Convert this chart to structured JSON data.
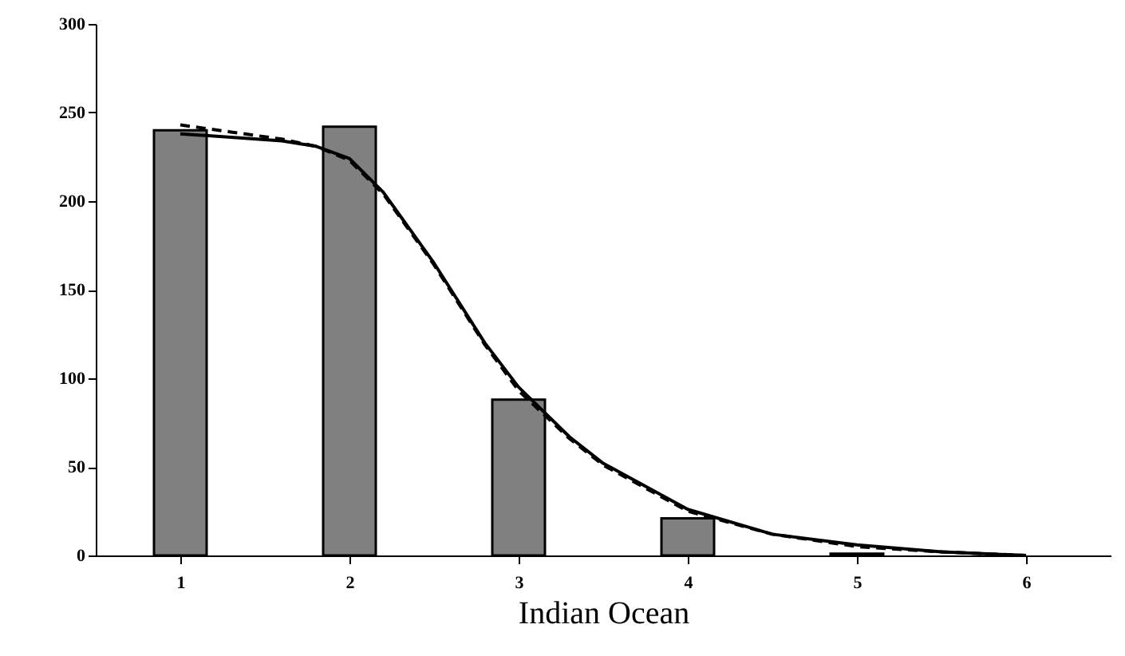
{
  "chart_data": {
    "type": "bar",
    "xlabel": "Indian Ocean",
    "x": [
      1,
      2,
      3,
      4,
      5
    ],
    "xlim": [
      0.5,
      6.5
    ],
    "xticks": [
      1,
      2,
      3,
      4,
      5,
      6
    ],
    "ylim": [
      0,
      300
    ],
    "yticks": [
      0,
      50,
      100,
      150,
      200,
      250,
      300
    ],
    "grid": false,
    "series": [
      {
        "color": "#808080",
        "values": [
          240,
          242,
          88,
          21,
          1
        ]
      },
      {
        "type": "line",
        "color": "#000000",
        "line_style": "solid",
        "x": [
          1.0,
          1.3,
          1.6,
          1.8,
          2.0,
          2.2,
          2.5,
          2.8,
          3.0,
          3.3,
          3.5,
          4.0,
          4.5,
          5.0,
          5.5,
          6.0
        ],
        "values": [
          238,
          236,
          234,
          231,
          224,
          205,
          165,
          120,
          95,
          67,
          52,
          26,
          12,
          6,
          2,
          0
        ]
      },
      {
        "type": "line",
        "color": "#000000",
        "line_style": "dashed",
        "x": [
          1.0,
          1.3,
          1.6,
          1.8,
          2.0,
          2.2,
          2.5,
          2.8,
          3.0,
          3.3,
          3.5,
          4.0,
          4.5,
          5.0,
          5.5,
          6.0
        ],
        "values": [
          243,
          239,
          235,
          231,
          223,
          204,
          164,
          119,
          93,
          66,
          51,
          25,
          12,
          5,
          2,
          0
        ]
      }
    ]
  }
}
